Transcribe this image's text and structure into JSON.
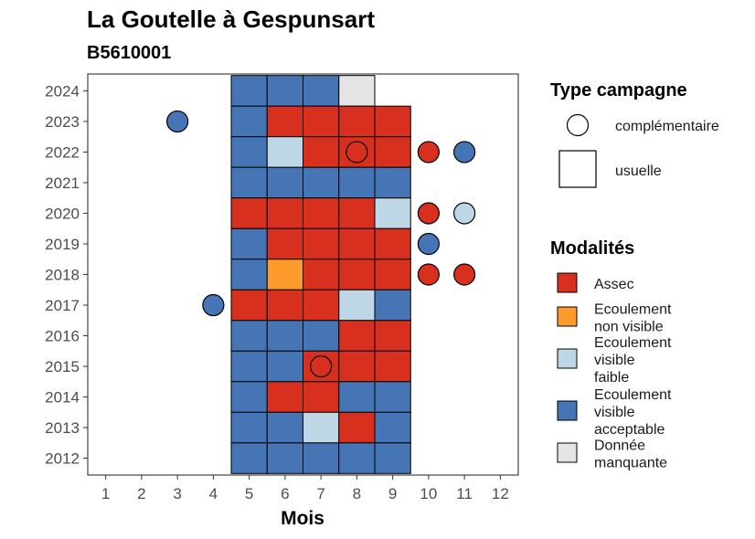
{
  "chart_data": {
    "type": "heatmap",
    "title": "La Goutelle à Gespunsart",
    "subtitle": "B5610001",
    "xlabel": "Mois",
    "ylabel": "",
    "x_ticks": [
      "1",
      "2",
      "3",
      "4",
      "5",
      "6",
      "7",
      "8",
      "9",
      "10",
      "11",
      "12"
    ],
    "y_ticks": [
      "2012",
      "2013",
      "2014",
      "2015",
      "2016",
      "2017",
      "2018",
      "2019",
      "2020",
      "2021",
      "2022",
      "2023",
      "2024"
    ],
    "xlim": [
      0.5,
      12.5
    ],
    "ylim": [
      2011.45,
      2024.55
    ],
    "grid": false,
    "legend_position": "right",
    "colors": {
      "Assec": "#d7301f",
      "Ecoulement non visible": "#fd9a2c",
      "Ecoulement visible faible": "#bdd7e7",
      "Ecoulement visible acceptable": "#4575b4",
      "Donnée manquante": "#e5e5e5"
    },
    "legends": [
      {
        "title": "Type campagne",
        "items": [
          {
            "shape": "circle",
            "label": "complémentaire"
          },
          {
            "shape": "square",
            "label": "usuelle"
          }
        ]
      },
      {
        "title": "Modalités",
        "items": [
          {
            "key": "Assec",
            "lines": [
              "Assec"
            ]
          },
          {
            "key": "Ecoulement non visible",
            "lines": [
              "Ecoulement",
              "non visible"
            ]
          },
          {
            "key": "Ecoulement visible faible",
            "lines": [
              "Ecoulement",
              "visible",
              "faible"
            ]
          },
          {
            "key": "Ecoulement visible acceptable",
            "lines": [
              "Ecoulement",
              "visible",
              "acceptable"
            ]
          },
          {
            "key": "Donnée manquante",
            "lines": [
              "Donnée",
              "manquante"
            ]
          }
        ]
      }
    ],
    "squares": [
      {
        "year": 2024,
        "month": 5,
        "value": "Ecoulement visible acceptable"
      },
      {
        "year": 2024,
        "month": 6,
        "value": "Ecoulement visible acceptable"
      },
      {
        "year": 2024,
        "month": 7,
        "value": "Ecoulement visible acceptable"
      },
      {
        "year": 2024,
        "month": 8,
        "value": "Donnée manquante"
      },
      {
        "year": 2023,
        "month": 5,
        "value": "Ecoulement visible acceptable"
      },
      {
        "year": 2023,
        "month": 6,
        "value": "Assec"
      },
      {
        "year": 2023,
        "month": 7,
        "value": "Assec"
      },
      {
        "year": 2023,
        "month": 8,
        "value": "Assec"
      },
      {
        "year": 2023,
        "month": 9,
        "value": "Assec"
      },
      {
        "year": 2022,
        "month": 5,
        "value": "Ecoulement visible acceptable"
      },
      {
        "year": 2022,
        "month": 6,
        "value": "Ecoulement visible faible"
      },
      {
        "year": 2022,
        "month": 7,
        "value": "Assec"
      },
      {
        "year": 2022,
        "month": 8,
        "value": "Assec"
      },
      {
        "year": 2022,
        "month": 9,
        "value": "Assec"
      },
      {
        "year": 2021,
        "month": 5,
        "value": "Ecoulement visible acceptable"
      },
      {
        "year": 2021,
        "month": 6,
        "value": "Ecoulement visible acceptable"
      },
      {
        "year": 2021,
        "month": 7,
        "value": "Ecoulement visible acceptable"
      },
      {
        "year": 2021,
        "month": 8,
        "value": "Ecoulement visible acceptable"
      },
      {
        "year": 2021,
        "month": 9,
        "value": "Ecoulement visible acceptable"
      },
      {
        "year": 2020,
        "month": 5,
        "value": "Assec"
      },
      {
        "year": 2020,
        "month": 6,
        "value": "Assec"
      },
      {
        "year": 2020,
        "month": 7,
        "value": "Assec"
      },
      {
        "year": 2020,
        "month": 8,
        "value": "Assec"
      },
      {
        "year": 2020,
        "month": 9,
        "value": "Ecoulement visible faible"
      },
      {
        "year": 2019,
        "month": 5,
        "value": "Ecoulement visible acceptable"
      },
      {
        "year": 2019,
        "month": 6,
        "value": "Assec"
      },
      {
        "year": 2019,
        "month": 7,
        "value": "Assec"
      },
      {
        "year": 2019,
        "month": 8,
        "value": "Assec"
      },
      {
        "year": 2019,
        "month": 9,
        "value": "Assec"
      },
      {
        "year": 2018,
        "month": 5,
        "value": "Ecoulement visible acceptable"
      },
      {
        "year": 2018,
        "month": 6,
        "value": "Ecoulement non visible"
      },
      {
        "year": 2018,
        "month": 7,
        "value": "Assec"
      },
      {
        "year": 2018,
        "month": 8,
        "value": "Assec"
      },
      {
        "year": 2018,
        "month": 9,
        "value": "Assec"
      },
      {
        "year": 2017,
        "month": 5,
        "value": "Assec"
      },
      {
        "year": 2017,
        "month": 6,
        "value": "Assec"
      },
      {
        "year": 2017,
        "month": 7,
        "value": "Assec"
      },
      {
        "year": 2017,
        "month": 8,
        "value": "Ecoulement visible faible"
      },
      {
        "year": 2017,
        "month": 9,
        "value": "Ecoulement visible acceptable"
      },
      {
        "year": 2016,
        "month": 5,
        "value": "Ecoulement visible acceptable"
      },
      {
        "year": 2016,
        "month": 6,
        "value": "Ecoulement visible acceptable"
      },
      {
        "year": 2016,
        "month": 7,
        "value": "Ecoulement visible acceptable"
      },
      {
        "year": 2016,
        "month": 8,
        "value": "Assec"
      },
      {
        "year": 2016,
        "month": 9,
        "value": "Assec"
      },
      {
        "year": 2015,
        "month": 5,
        "value": "Ecoulement visible acceptable"
      },
      {
        "year": 2015,
        "month": 6,
        "value": "Ecoulement visible acceptable"
      },
      {
        "year": 2015,
        "month": 7,
        "value": "Assec"
      },
      {
        "year": 2015,
        "month": 8,
        "value": "Assec"
      },
      {
        "year": 2015,
        "month": 9,
        "value": "Assec"
      },
      {
        "year": 2014,
        "month": 5,
        "value": "Ecoulement visible acceptable"
      },
      {
        "year": 2014,
        "month": 6,
        "value": "Assec"
      },
      {
        "year": 2014,
        "month": 7,
        "value": "Assec"
      },
      {
        "year": 2014,
        "month": 8,
        "value": "Ecoulement visible acceptable"
      },
      {
        "year": 2014,
        "month": 9,
        "value": "Ecoulement visible acceptable"
      },
      {
        "year": 2013,
        "month": 5,
        "value": "Ecoulement visible acceptable"
      },
      {
        "year": 2013,
        "month": 6,
        "value": "Ecoulement visible acceptable"
      },
      {
        "year": 2013,
        "month": 7,
        "value": "Ecoulement visible faible"
      },
      {
        "year": 2013,
        "month": 8,
        "value": "Assec"
      },
      {
        "year": 2013,
        "month": 9,
        "value": "Ecoulement visible acceptable"
      },
      {
        "year": 2012,
        "month": 5,
        "value": "Ecoulement visible acceptable"
      },
      {
        "year": 2012,
        "month": 6,
        "value": "Ecoulement visible acceptable"
      },
      {
        "year": 2012,
        "month": 7,
        "value": "Ecoulement visible acceptable"
      },
      {
        "year": 2012,
        "month": 8,
        "value": "Ecoulement visible acceptable"
      },
      {
        "year": 2012,
        "month": 9,
        "value": "Ecoulement visible acceptable"
      }
    ],
    "circles": [
      {
        "year": 2023,
        "month": 3,
        "value": "Ecoulement visible acceptable"
      },
      {
        "year": 2022,
        "month": 8,
        "value": "Assec"
      },
      {
        "year": 2022,
        "month": 10,
        "value": "Assec"
      },
      {
        "year": 2022,
        "month": 11,
        "value": "Ecoulement visible acceptable"
      },
      {
        "year": 2020,
        "month": 10,
        "value": "Assec"
      },
      {
        "year": 2020,
        "month": 11,
        "value": "Ecoulement visible faible"
      },
      {
        "year": 2019,
        "month": 10,
        "value": "Ecoulement visible acceptable"
      },
      {
        "year": 2018,
        "month": 10,
        "value": "Assec"
      },
      {
        "year": 2018,
        "month": 11,
        "value": "Assec"
      },
      {
        "year": 2017,
        "month": 4,
        "value": "Ecoulement visible acceptable"
      },
      {
        "year": 2015,
        "month": 7,
        "value": "Assec"
      }
    ]
  }
}
